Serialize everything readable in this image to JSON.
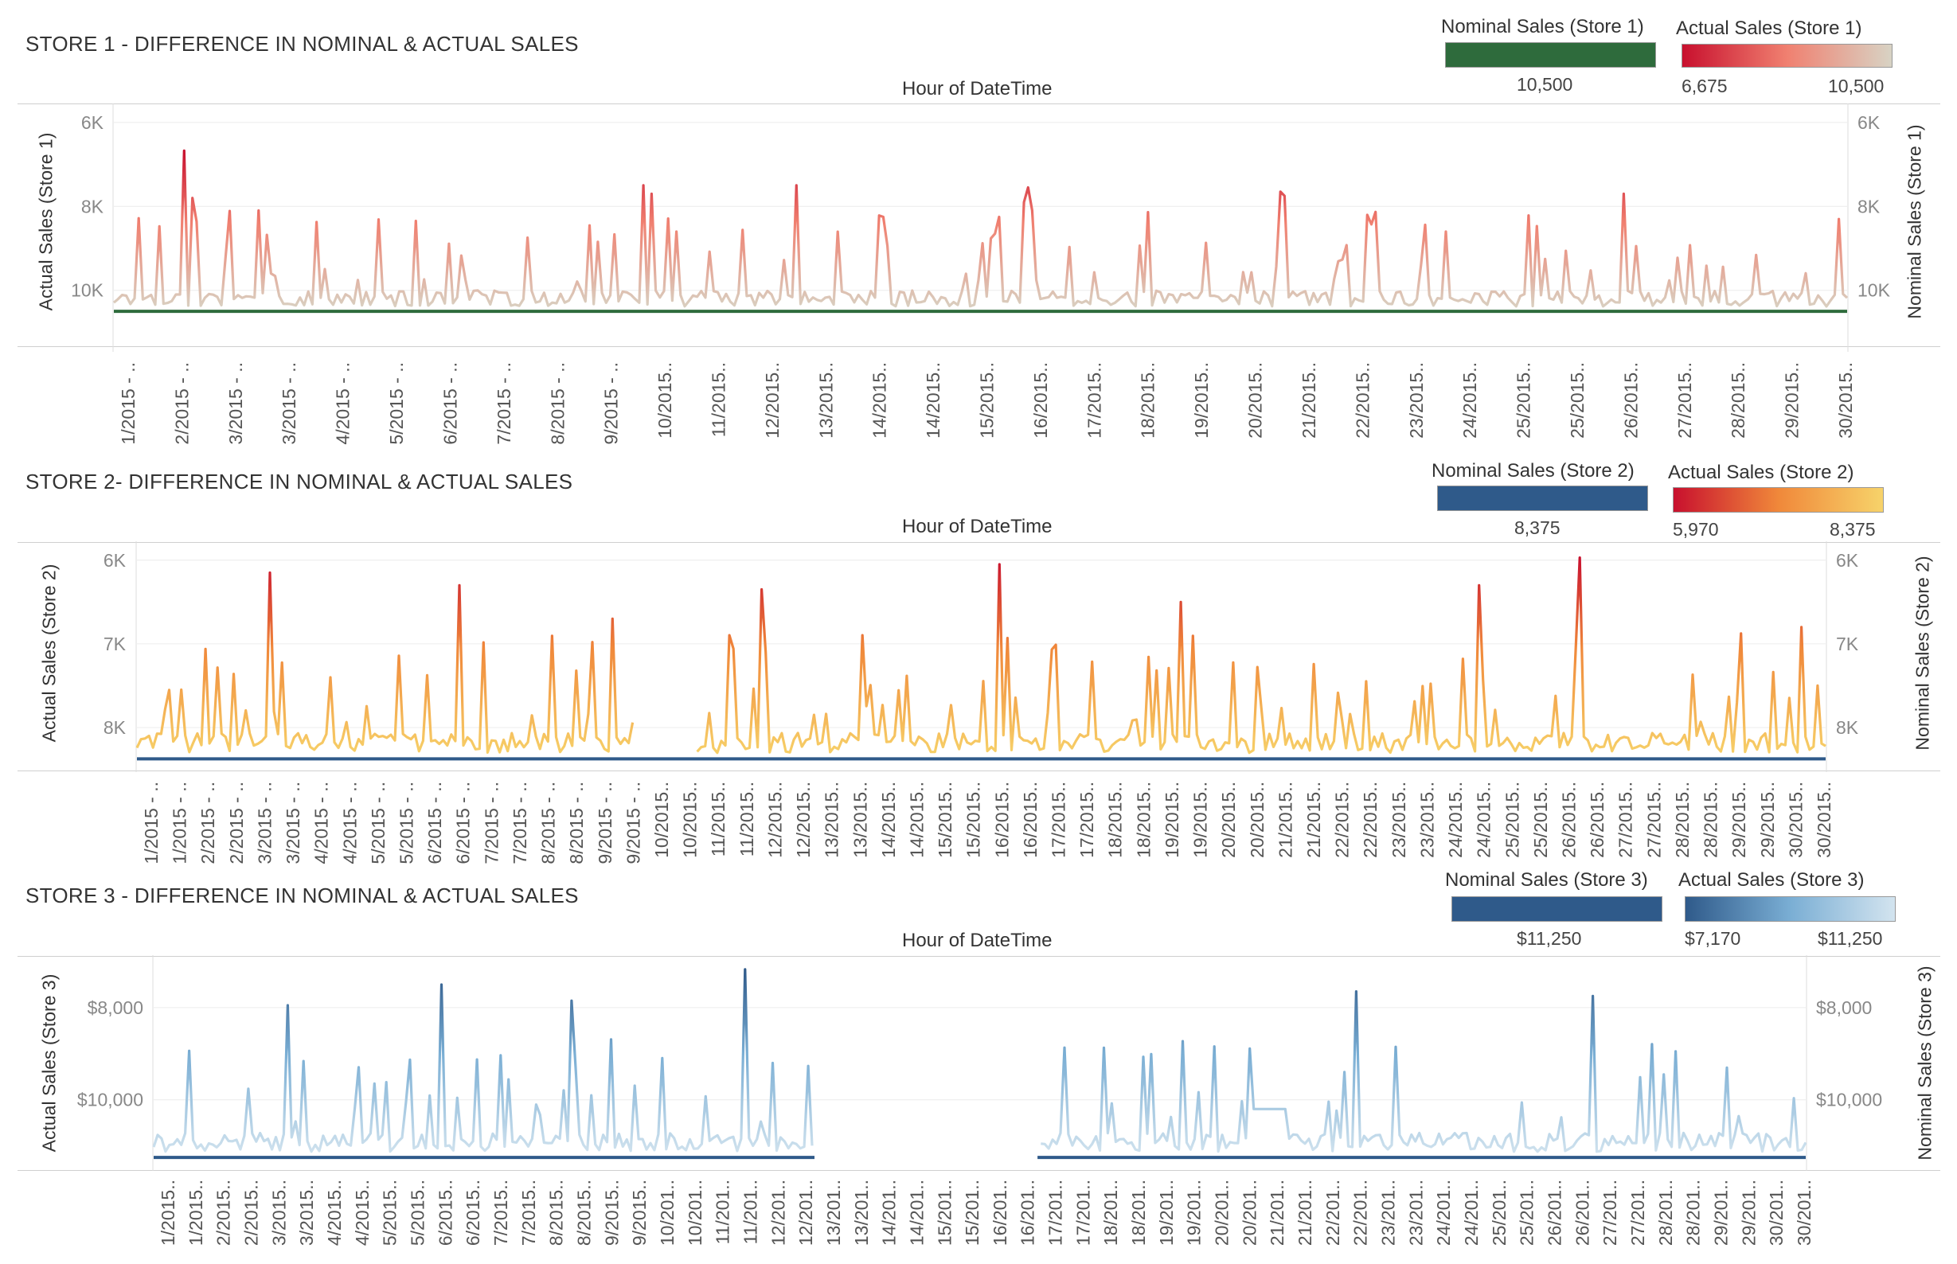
{
  "panels": [
    {
      "title": "STORE 1 - DIFFERENCE IN NOMINAL & ACTUAL SALES",
      "axis_header": "Hour of DateTime",
      "left_axis_label": "Actual Sales (Store 1)",
      "right_axis_label": "Nominal Sales (Store 1)",
      "legend_nominal": {
        "title": "Nominal Sales (Store 1)",
        "value": "10,500",
        "color": "#2e6b3c"
      },
      "legend_actual": {
        "title": "Actual Sales (Store 1)",
        "min_label": "6,675",
        "max_label": "10,500",
        "color_low": "#c8102e",
        "color_mid": "#f08070",
        "color_high": "#d8d3c4"
      }
    },
    {
      "title": "STORE 2- DIFFERENCE IN NOMINAL & ACTUAL SALES",
      "axis_header": "Hour of DateTime",
      "left_axis_label": "Actual Sales (Store 2)",
      "right_axis_label": "Nominal Sales (Store 2)",
      "legend_nominal": {
        "title": "Nominal Sales (Store 2)",
        "value": "8,375",
        "color": "#2f5a8a"
      },
      "legend_actual": {
        "title": "Actual Sales (Store 2)",
        "min_label": "5,970",
        "max_label": "8,375",
        "color_low": "#c8102e",
        "color_mid": "#f0883a",
        "color_high": "#f7d36a"
      }
    },
    {
      "title": "STORE 3 - DIFFERENCE IN NOMINAL & ACTUAL SALES",
      "axis_header": "Hour of DateTime",
      "left_axis_label": "Actual Sales (Store 3)",
      "right_axis_label": "Nominal Sales (Store 3)",
      "legend_nominal": {
        "title": "Nominal Sales (Store 3)",
        "value": "$11,250",
        "color": "#2f5a8a"
      },
      "legend_actual": {
        "title": "Actual Sales (Store 3)",
        "min_label": "$7,170",
        "max_label": "$11,250",
        "color_low": "#2f5a8a",
        "color_mid": "#7aaed4",
        "color_high": "#d3e4ef"
      }
    }
  ],
  "chart_data": [
    {
      "type": "line",
      "title": "STORE 1 - DIFFERENCE IN NOMINAL & ACTUAL SALES",
      "xlabel": "Hour of DateTime",
      "ylabel": "Actual Sales (Store 1)",
      "y2label": "Nominal Sales (Store 1)",
      "y_reversed": true,
      "ylim": [
        5700,
        11200
      ],
      "y_ticks": [
        6000,
        8000,
        10000
      ],
      "y_tick_labels": [
        "6K",
        "8K",
        "10K"
      ],
      "grid": true,
      "x_tick_labels": [
        "1/2015 - ..",
        "2/2015 - ..",
        "3/2015 - ..",
        "3/2015 - ..",
        "4/2015 - ..",
        "5/2015 - ..",
        "6/2015 - ..",
        "7/2015 - ..",
        "8/2015 - ..",
        "9/2015 - ..",
        "10/2015..",
        "11/2015..",
        "12/2015..",
        "13/2015..",
        "14/2015..",
        "14/2015..",
        "15/2015..",
        "16/2015..",
        "17/2015..",
        "18/2015..",
        "19/2015..",
        "20/2015..",
        "21/2015..",
        "22/2015..",
        "23/2015..",
        "24/2015..",
        "25/2015..",
        "25/2015..",
        "26/2015..",
        "27/2015..",
        "28/2015..",
        "29/2015..",
        "30/2015.."
      ],
      "series": [
        {
          "name": "Nominal Sales (Store 1)",
          "constant": 10500
        },
        {
          "name": "Actual Sales (Store 1)",
          "min": 6675,
          "max": 10500,
          "points": 420,
          "seed": 17,
          "segments": [
            [
              0,
              1
            ]
          ],
          "peaks": [
            [
              0.04,
              6675
            ],
            [
              0.046,
              7800
            ],
            [
              0.305,
              7500
            ],
            [
              0.31,
              7700
            ],
            [
              0.393,
              7500
            ],
            [
              0.525,
              7900
            ],
            [
              0.528,
              7550
            ],
            [
              0.673,
              7650
            ],
            [
              0.675,
              7750
            ],
            [
              0.87,
              7700
            ]
          ]
        }
      ]
    },
    {
      "type": "line",
      "title": "STORE 2- DIFFERENCE IN NOMINAL & ACTUAL SALES",
      "xlabel": "Hour of DateTime",
      "ylabel": "Actual Sales (Store 2)",
      "y2label": "Nominal Sales (Store 2)",
      "y_reversed": true,
      "ylim": [
        5850,
        8400
      ],
      "y_ticks": [
        6000,
        7000,
        8000
      ],
      "y_tick_labels": [
        "6K",
        "7K",
        "8K"
      ],
      "grid": true,
      "x_tick_labels": [
        "1/2015 - ..",
        "1/2015 - ..",
        "2/2015 - ..",
        "2/2015 - ..",
        "3/2015 - ..",
        "3/2015 - ..",
        "4/2015 - ..",
        "4/2015 - ..",
        "5/2015 - ..",
        "5/2015 - ..",
        "6/2015 - ..",
        "6/2015 - ..",
        "7/2015 - ..",
        "7/2015 - ..",
        "8/2015 - ..",
        "8/2015 - ..",
        "9/2015 - ..",
        "9/2015 - ..",
        "10/2015..",
        "10/2015..",
        "11/2015..",
        "11/2015..",
        "12/2015..",
        "12/2015..",
        "13/2015..",
        "13/2015..",
        "14/2015..",
        "14/2015..",
        "15/2015..",
        "15/2015..",
        "16/2015..",
        "16/2015..",
        "17/2015..",
        "17/2015..",
        "18/2015..",
        "18/2015..",
        "19/2015..",
        "19/2015..",
        "20/2015..",
        "20/2015..",
        "21/2015..",
        "21/2015..",
        "22/2015..",
        "22/2015..",
        "23/2015..",
        "23/2015..",
        "24/2015..",
        "24/2015..",
        "25/2015..",
        "25/2015..",
        "26/2015..",
        "26/2015..",
        "27/2015..",
        "27/2015..",
        "28/2015..",
        "28/2015..",
        "29/2015..",
        "29/2015..",
        "30/2015..",
        "30/2015.."
      ],
      "series": [
        {
          "name": "Nominal Sales (Store 2)",
          "constant": 8375
        },
        {
          "name": "Actual Sales (Store 2)",
          "min": 5970,
          "max": 8375,
          "points": 420,
          "seed": 29,
          "segments": [
            [
              0,
              0.295
            ],
            [
              0.33,
              1
            ]
          ],
          "peaks": [
            [
              0.078,
              6150
            ],
            [
              0.19,
              6300
            ],
            [
              0.282,
              6700
            ],
            [
              0.37,
              6350
            ],
            [
              0.51,
              6050
            ],
            [
              0.618,
              6500
            ],
            [
              0.795,
              6300
            ],
            [
              0.855,
              5970
            ],
            [
              0.985,
              6800
            ]
          ]
        }
      ]
    },
    {
      "type": "line",
      "title": "STORE 3 - DIFFERENCE IN NOMINAL & ACTUAL SALES",
      "xlabel": "Hour of DateTime",
      "ylabel": "Actual Sales (Store 3)",
      "y2label": "Nominal Sales (Store 3)",
      "y_reversed": true,
      "ylim": [
        7000,
        11300
      ],
      "y_ticks": [
        8000,
        10000
      ],
      "y_tick_labels": [
        "$8,000",
        "$10,000"
      ],
      "grid": true,
      "x_tick_labels": [
        "1/2015..",
        "1/2015..",
        "2/2015..",
        "2/2015..",
        "3/2015..",
        "3/2015..",
        "4/2015..",
        "4/2015..",
        "5/2015..",
        "5/2015..",
        "6/2015..",
        "6/2015..",
        "7/2015..",
        "7/2015..",
        "8/2015..",
        "8/2015..",
        "9/2015..",
        "9/2015..",
        "10/201..",
        "10/201..",
        "11/201..",
        "11/201..",
        "12/201..",
        "12/201..",
        "13/201..",
        "13/201..",
        "14/201..",
        "14/201..",
        "15/201..",
        "15/201..",
        "16/201..",
        "16/201..",
        "17/201..",
        "17/201..",
        "18/201..",
        "18/201..",
        "19/201..",
        "19/201..",
        "20/201..",
        "20/201..",
        "21/201..",
        "21/201..",
        "22/201..",
        "22/201..",
        "23/201..",
        "23/201..",
        "24/201..",
        "24/201..",
        "25/201..",
        "25/201..",
        "26/201..",
        "26/201..",
        "27/201..",
        "27/201..",
        "28/201..",
        "28/201..",
        "29/201..",
        "29/201..",
        "30/201..",
        "30/201.."
      ],
      "series": [
        {
          "name": "Nominal Sales (Store 3)",
          "constant": 11250,
          "segments": [
            [
              0,
              0.4
            ],
            [
              0.535,
              1
            ]
          ]
        },
        {
          "name": "Actual Sales (Store 3)",
          "min": 7170,
          "max": 11250,
          "points": 420,
          "seed": 41,
          "segments": [
            [
              0,
              0.4
            ],
            [
              0.535,
              1
            ]
          ],
          "flat": [
            [
              0.665,
              0.685,
              10200
            ]
          ],
          "peaks": [
            [
              0.175,
              7500
            ],
            [
              0.254,
              7850
            ],
            [
              0.358,
              7170
            ],
            [
              0.082,
              7950
            ],
            [
              0.729,
              7650
            ],
            [
              0.87,
              7750
            ]
          ]
        }
      ]
    }
  ]
}
